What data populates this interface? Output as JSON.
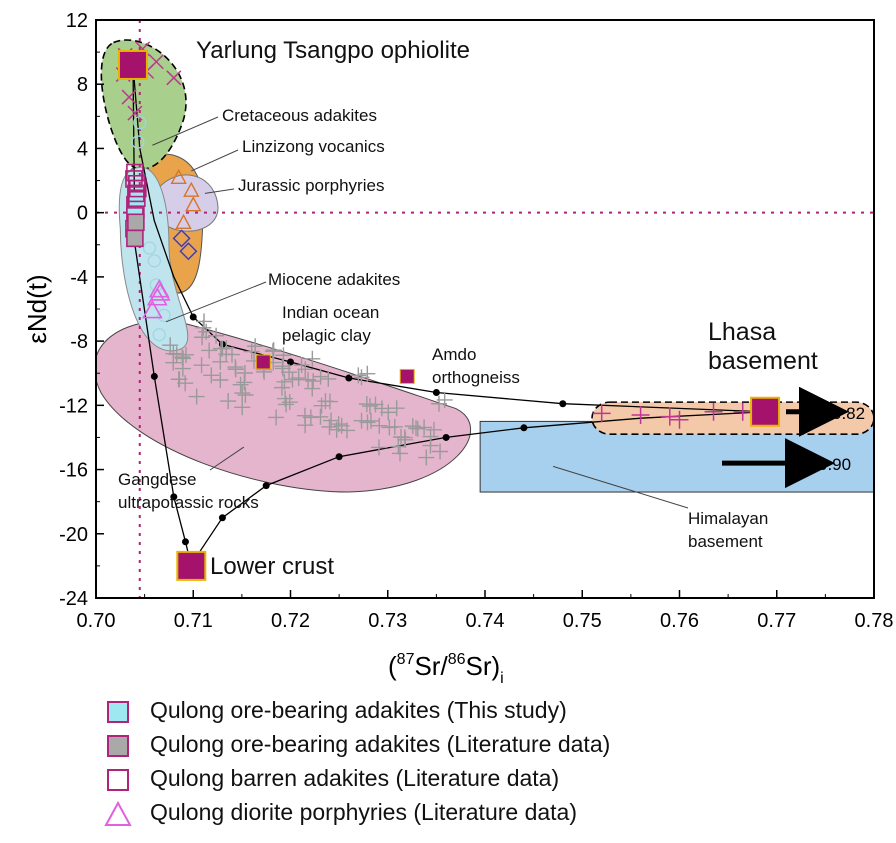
{
  "chart_data": {
    "type": "scatter",
    "xlabel": {
      "open": "(",
      "sup1": "87",
      "mid": "Sr/",
      "sup2": "86",
      "close": "Sr)",
      "sub": "i"
    },
    "ylabel": "εNd(t)",
    "xlim": [
      0.7,
      0.78
    ],
    "ylim": [
      -24,
      12
    ],
    "xticks": [
      "0.70",
      "0.71",
      "0.72",
      "0.73",
      "0.74",
      "0.75",
      "0.76",
      "0.77",
      "0.78"
    ],
    "yticks": [
      "12",
      "8",
      "4",
      "0",
      "-4",
      "-8",
      "-12",
      "-16",
      "-20",
      "-24"
    ],
    "reference_lines": {
      "x": 0.7045,
      "y": 0
    },
    "endmembers": [
      {
        "name": "Yarlung Tsangpo ophiolite",
        "x": 0.7038,
        "y": 9.2
      },
      {
        "name": "Lower crust",
        "x": 0.7098,
        "y": -22.0
      },
      {
        "name": "Lhasa basement",
        "x": 0.7688,
        "y": -12.4
      }
    ],
    "small_endmembers": [
      {
        "x": 0.7172,
        "y": -9.3
      },
      {
        "x": 0.732,
        "y": -10.2
      }
    ],
    "fields": [
      {
        "name": "Cretaceous adakites",
        "fill": "#a9cf8c"
      },
      {
        "name": "Linzizong vocanics",
        "fill": "#e9a34b"
      },
      {
        "name": "Jurassic porphyries",
        "fill": "#d6cde8"
      },
      {
        "name": "Miocene adakites",
        "fill": "#bfe4ee"
      },
      {
        "name": "Gangdese ultrapotassic rocks",
        "fill": "#e5b5cd"
      },
      {
        "name": "Himalayan basement",
        "fill": "#a7d0ef"
      },
      {
        "name": "Lhasa basement",
        "fill": "#f3c9aa"
      }
    ],
    "mixing_curves": [
      {
        "points": [
          [
            0.7038,
            9.2
          ],
          [
            0.7045,
            4.0
          ],
          [
            0.706,
            -0.5
          ],
          [
            0.708,
            -4.0
          ],
          [
            0.71,
            -6.5
          ],
          [
            0.713,
            -8.2
          ],
          [
            0.72,
            -9.3
          ],
          [
            0.726,
            -10.3
          ],
          [
            0.735,
            -11.2
          ],
          [
            0.748,
            -11.9
          ],
          [
            0.7688,
            -12.4
          ]
        ]
      },
      {
        "points": [
          [
            0.7038,
            9.2
          ],
          [
            0.704,
            -2.0
          ],
          [
            0.706,
            -10.2
          ],
          [
            0.708,
            -17.7
          ],
          [
            0.7092,
            -20.5
          ],
          [
            0.7098,
            -22.0
          ]
        ]
      },
      {
        "points": [
          [
            0.7098,
            -22.0
          ],
          [
            0.7108,
            -21.0
          ],
          [
            0.713,
            -19.0
          ],
          [
            0.7175,
            -17.0
          ],
          [
            0.725,
            -15.2
          ],
          [
            0.736,
            -14.0
          ],
          [
            0.744,
            -13.4
          ],
          [
            0.756,
            -12.8
          ],
          [
            0.7688,
            -12.4
          ]
        ]
      }
    ],
    "curve_dots": [
      [
        0.706,
        -10.2
      ],
      [
        0.708,
        -17.7
      ],
      [
        0.7092,
        -20.5
      ],
      [
        0.71,
        -6.5
      ],
      [
        0.713,
        -8.2
      ],
      [
        0.72,
        -9.3
      ],
      [
        0.726,
        -10.3
      ],
      [
        0.735,
        -11.2
      ],
      [
        0.748,
        -11.9
      ],
      [
        0.713,
        -19.0
      ],
      [
        0.7175,
        -17.0
      ],
      [
        0.725,
        -15.2
      ],
      [
        0.736,
        -14.0
      ],
      [
        0.744,
        -13.4
      ]
    ],
    "arrows": [
      {
        "label": "0.82",
        "y": -12.4
      },
      {
        "label": "0.90",
        "y": -15.6
      }
    ],
    "annotations": [
      {
        "text": "Cretaceous adakites"
      },
      {
        "text": "Linzizong vocanics"
      },
      {
        "text": "Jurassic porphyries"
      },
      {
        "text": "Miocene adakites"
      },
      {
        "text": "Indian ocean"
      },
      {
        "text": "pelagic clay"
      },
      {
        "text": "Amdo"
      },
      {
        "text": "orthogneiss"
      },
      {
        "text": "Gangdese"
      },
      {
        "text": "ultrapotassic rocks"
      },
      {
        "text": "Himalayan"
      },
      {
        "text": "basement"
      },
      {
        "text": "Lhasa"
      },
      {
        "text": "basement"
      },
      {
        "text": "Yarlung Tsangpo ophiolite"
      },
      {
        "text": "Lower crust"
      }
    ],
    "series": [
      {
        "name": "Qulong ore-bearing adakites (This study)",
        "marker": "square",
        "color": "#b0237a",
        "fill": "#9ee8f2",
        "points": [
          [
            0.704,
            0.5
          ],
          [
            0.7041,
            0.2
          ],
          [
            0.7042,
            0.9
          ],
          [
            0.704,
            -0.2
          ]
        ]
      },
      {
        "name": "Qulong ore-bearing adakites (Literature data)",
        "marker": "square",
        "color": "#b0237a",
        "fill": "#a9a9a9",
        "points": [
          [
            0.7039,
            -1.0
          ],
          [
            0.704,
            -1.6
          ],
          [
            0.7041,
            -0.6
          ]
        ]
      },
      {
        "name": "Qulong barren adakites (Literature data)",
        "marker": "square",
        "color": "#b0237a",
        "fill": "none",
        "points": [
          [
            0.704,
            2.5
          ],
          [
            0.7042,
            1.8
          ],
          [
            0.7041,
            1.2
          ],
          [
            0.7043,
            1.5
          ],
          [
            0.7039,
            2.1
          ]
        ]
      },
      {
        "name": "Qulong diorite porphyries (Literature data)",
        "marker": "triangle",
        "color": "#e060e0",
        "fill": "none",
        "points": [
          [
            0.7065,
            -4.8
          ],
          [
            0.7063,
            -5.3
          ],
          [
            0.7058,
            -6.1
          ],
          [
            0.7066,
            -5.0
          ]
        ]
      }
    ]
  }
}
